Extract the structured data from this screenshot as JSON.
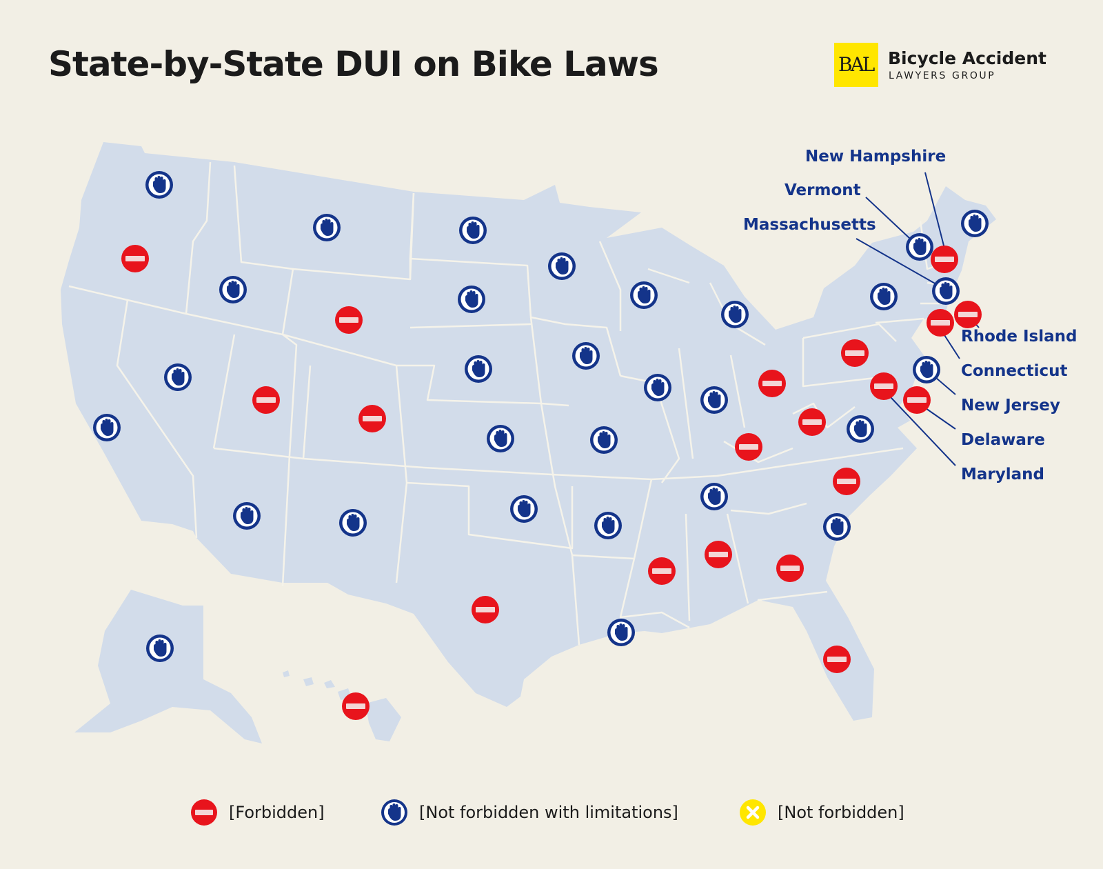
{
  "title": "State-by-State DUI on Bike Laws",
  "logo": {
    "monogram": "BAL",
    "line1": "Bicycle Accident",
    "line2": "LAWYERS GROUP",
    "accent_color": "#ffe600"
  },
  "colors": {
    "background": "#f2efe5",
    "land": "#d2dcea",
    "border": "#f5f3ea",
    "forbidden": "#e8141c",
    "limited": "#14348a",
    "not_forbidden": "#ffe600"
  },
  "legend": [
    {
      "status": "forbidden",
      "label": "[Forbidden]",
      "icon": "no-entry-icon"
    },
    {
      "status": "limited",
      "label": "[Not forbidden with limitations]",
      "icon": "stop-hand-icon"
    },
    {
      "status": "not_forbidden",
      "label": "[Not forbidden]",
      "icon": "x-mark-icon"
    }
  ],
  "callouts": [
    {
      "state": "New Hampshire",
      "label": "New Hampshire"
    },
    {
      "state": "Vermont",
      "label": "Vermont"
    },
    {
      "state": "Massachusetts",
      "label": "Massachusetts"
    },
    {
      "state": "Rhode Island",
      "label": "Rhode Island"
    },
    {
      "state": "Connecticut",
      "label": "Connecticut"
    },
    {
      "state": "New Jersey",
      "label": "New Jersey"
    },
    {
      "state": "Delaware",
      "label": "Delaware"
    },
    {
      "state": "Maryland",
      "label": "Maryland"
    }
  ],
  "states": [
    {
      "state": "Washington",
      "status": "limited"
    },
    {
      "state": "Oregon",
      "status": "forbidden"
    },
    {
      "state": "California",
      "status": "limited"
    },
    {
      "state": "Idaho",
      "status": "limited"
    },
    {
      "state": "Nevada",
      "status": "limited"
    },
    {
      "state": "Montana",
      "status": "limited"
    },
    {
      "state": "Wyoming",
      "status": "forbidden"
    },
    {
      "state": "Utah",
      "status": "forbidden"
    },
    {
      "state": "Colorado",
      "status": "forbidden"
    },
    {
      "state": "Arizona",
      "status": "limited"
    },
    {
      "state": "New Mexico",
      "status": "limited"
    },
    {
      "state": "North Dakota",
      "status": "limited"
    },
    {
      "state": "South Dakota",
      "status": "limited"
    },
    {
      "state": "Nebraska",
      "status": "limited"
    },
    {
      "state": "Kansas",
      "status": "limited"
    },
    {
      "state": "Oklahoma",
      "status": "limited"
    },
    {
      "state": "Texas",
      "status": "forbidden"
    },
    {
      "state": "Minnesota",
      "status": "limited"
    },
    {
      "state": "Iowa",
      "status": "limited"
    },
    {
      "state": "Missouri",
      "status": "limited"
    },
    {
      "state": "Arkansas",
      "status": "limited"
    },
    {
      "state": "Louisiana",
      "status": "limited"
    },
    {
      "state": "Wisconsin",
      "status": "limited"
    },
    {
      "state": "Illinois",
      "status": "limited"
    },
    {
      "state": "Michigan",
      "status": "limited"
    },
    {
      "state": "Indiana",
      "status": "limited"
    },
    {
      "state": "Ohio",
      "status": "forbidden"
    },
    {
      "state": "Kentucky",
      "status": "forbidden"
    },
    {
      "state": "Tennessee",
      "status": "limited"
    },
    {
      "state": "Mississippi",
      "status": "forbidden"
    },
    {
      "state": "Alabama",
      "status": "forbidden"
    },
    {
      "state": "Georgia",
      "status": "forbidden"
    },
    {
      "state": "Florida",
      "status": "forbidden"
    },
    {
      "state": "South Carolina",
      "status": "limited"
    },
    {
      "state": "North Carolina",
      "status": "forbidden"
    },
    {
      "state": "Virginia",
      "status": "limited"
    },
    {
      "state": "West Virginia",
      "status": "forbidden"
    },
    {
      "state": "Pennsylvania",
      "status": "forbidden"
    },
    {
      "state": "New York",
      "status": "limited"
    },
    {
      "state": "Maine",
      "status": "limited"
    },
    {
      "state": "Vermont",
      "status": "limited"
    },
    {
      "state": "New Hampshire",
      "status": "forbidden"
    },
    {
      "state": "Massachusetts",
      "status": "limited"
    },
    {
      "state": "Rhode Island",
      "status": "forbidden"
    },
    {
      "state": "Connecticut",
      "status": "forbidden"
    },
    {
      "state": "New Jersey",
      "status": "limited"
    },
    {
      "state": "Delaware",
      "status": "forbidden"
    },
    {
      "state": "Maryland",
      "status": "forbidden"
    },
    {
      "state": "Alaska",
      "status": "limited"
    },
    {
      "state": "Hawaii",
      "status": "forbidden"
    }
  ]
}
